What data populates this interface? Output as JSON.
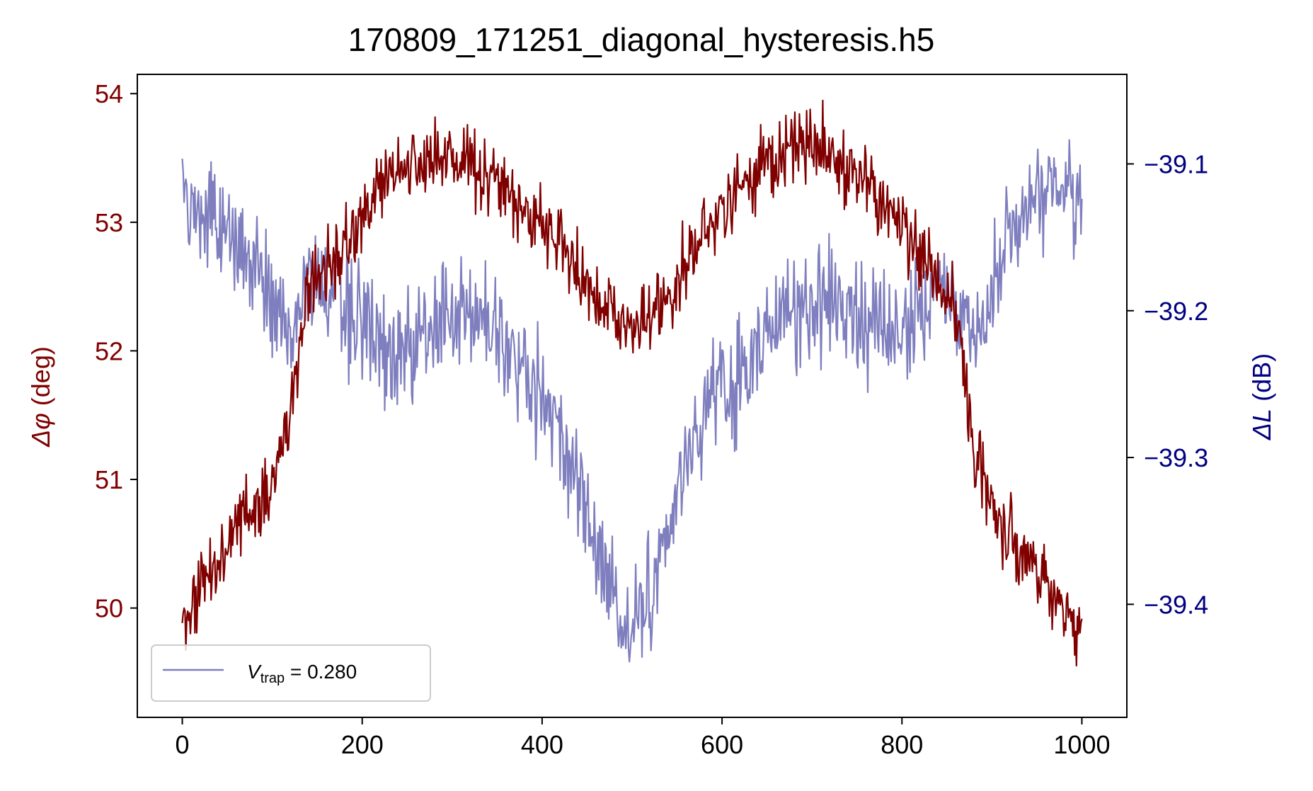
{
  "chart_data": {
    "type": "line",
    "title": "170809_171251_diagonal_hysteresis.h5",
    "xlabel": "",
    "ylabel_left": "Δφ (deg)",
    "ylabel_left_symbol": "Δφ",
    "ylabel_left_unit": " (deg)",
    "ylabel_right": "ΔL (dB)",
    "ylabel_right_symbol": "ΔL",
    "ylabel_right_unit": " (dB)",
    "xlim": [
      -50,
      1050
    ],
    "ylim_left": [
      49.15,
      54.15
    ],
    "ylim_right": [
      -39.477,
      -39.039
    ],
    "xticks": [
      "0",
      "200",
      "400",
      "600",
      "800",
      "1000"
    ],
    "xtick_values": [
      0,
      200,
      400,
      600,
      800,
      1000
    ],
    "yticks_left": [
      "50",
      "51",
      "52",
      "53",
      "54"
    ],
    "ytick_left_values": [
      50,
      51,
      52,
      53,
      54
    ],
    "yticks_right": [
      "−39.1",
      "−39.2",
      "−39.3",
      "−39.4"
    ],
    "ytick_right_values": [
      -39.1,
      -39.2,
      -39.3,
      -39.4
    ],
    "grid": false,
    "legend": {
      "placement": "lower-left",
      "symbol": "V",
      "subscript": "trap",
      "value_text": " = 0.280"
    },
    "series": [
      {
        "axis": "left",
        "color": "#800000",
        "x": [
          0,
          50,
          100,
          120,
          140,
          180,
          220,
          250,
          300,
          340,
          380,
          420,
          460,
          500,
          540,
          580,
          620,
          660,
          700,
          740,
          780,
          820,
          860,
          880,
          900,
          940,
          980,
          1000
        ],
        "y": [
          49.8,
          50.5,
          51.0,
          51.5,
          52.5,
          52.8,
          53.3,
          53.45,
          53.5,
          53.4,
          53.1,
          52.8,
          52.4,
          52.2,
          52.4,
          52.9,
          53.3,
          53.5,
          53.6,
          53.4,
          53.2,
          52.8,
          52.3,
          51.2,
          50.8,
          50.4,
          50.0,
          49.8
        ],
        "noise": 0.22
      },
      {
        "axis": "right",
        "color": "#7f7fbf",
        "x": [
          0,
          20,
          60,
          100,
          120,
          140,
          180,
          220,
          260,
          300,
          340,
          380,
          420,
          460,
          500,
          540,
          580,
          620,
          660,
          700,
          740,
          780,
          820,
          840,
          880,
          920,
          960,
          1000
        ],
        "y": [
          -39.12,
          -39.14,
          -39.15,
          -39.19,
          -39.22,
          -39.18,
          -39.2,
          -39.22,
          -39.23,
          -39.2,
          -39.21,
          -39.24,
          -39.29,
          -39.36,
          -39.42,
          -39.35,
          -39.27,
          -39.24,
          -39.21,
          -39.19,
          -39.2,
          -39.22,
          -39.2,
          -39.18,
          -39.22,
          -39.14,
          -39.11,
          -39.12
        ],
        "noise": 0.03
      }
    ]
  }
}
